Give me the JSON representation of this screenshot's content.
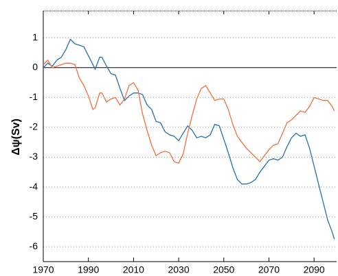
{
  "chart_data": {
    "type": "line",
    "y_label": "Δψ(Sv)",
    "x": [
      1970,
      1972,
      1974,
      1976,
      1978,
      1980,
      1982,
      1984,
      1986,
      1988,
      1990,
      1992,
      1993,
      1995,
      1996,
      1998,
      2000,
      2002,
      2004,
      2006,
      2008,
      2010,
      2012,
      2014,
      2016,
      2018,
      2020,
      2022,
      2024,
      2026,
      2028,
      2030,
      2032,
      2034,
      2036,
      2038,
      2040,
      2042,
      2044,
      2046,
      2048,
      2050,
      2052,
      2054,
      2056,
      2058,
      2060,
      2062,
      2064,
      2066,
      2068,
      2070,
      2072,
      2074,
      2076,
      2078,
      2080,
      2082,
      2084,
      2086,
      2088,
      2090,
      2092,
      2094,
      2096,
      2098,
      2099
    ],
    "series": [
      {
        "color": "#1f6fb4",
        "values": [
          0,
          0.15,
          0.05,
          0.25,
          0.35,
          0.6,
          0.95,
          0.8,
          0.75,
          0.7,
          0.4,
          0.1,
          -0.05,
          0.35,
          0.35,
          0.05,
          -0.2,
          -0.25,
          -0.7,
          -1.1,
          -0.95,
          -0.85,
          -0.85,
          -0.9,
          -1.25,
          -1.4,
          -1.8,
          -1.85,
          -2.15,
          -2.25,
          -2.3,
          -2.45,
          -2.2,
          -1.95,
          -2.1,
          -2.35,
          -2.3,
          -2.35,
          -2.25,
          -1.9,
          -1.95,
          -2.4,
          -2.85,
          -3.35,
          -3.75,
          -3.9,
          -3.9,
          -3.85,
          -3.75,
          -3.5,
          -3.3,
          -3.1,
          -3.05,
          -3.1,
          -3.0,
          -2.65,
          -2.35,
          -2.2,
          -2.3,
          -2.25,
          -2.7,
          -3.3,
          -3.9,
          -4.5,
          -5.1,
          -5.5,
          -5.75
        ]
      },
      {
        "color": "#f0703a",
        "values": [
          0.1,
          0.25,
          0,
          0.05,
          0.1,
          0.15,
          0.15,
          0.1,
          -0.35,
          -0.6,
          -0.95,
          -1.4,
          -1.35,
          -0.85,
          -0.85,
          -1.15,
          -1.05,
          -1.0,
          -1.25,
          -1.05,
          -0.6,
          -0.5,
          -0.75,
          -1.55,
          -2.1,
          -2.6,
          -2.95,
          -2.85,
          -2.8,
          -2.85,
          -3.15,
          -3.2,
          -2.9,
          -2.2,
          -1.6,
          -1.05,
          -0.7,
          -0.6,
          -0.85,
          -1.1,
          -1.05,
          -1.05,
          -1.4,
          -1.9,
          -2.3,
          -2.5,
          -2.7,
          -2.85,
          -3.0,
          -3.15,
          -2.95,
          -2.75,
          -2.6,
          -2.55,
          -2.2,
          -1.85,
          -1.75,
          -1.6,
          -1.45,
          -1.5,
          -1.3,
          -1.0,
          -1.05,
          -1.1,
          -1.1,
          -1.3,
          -1.45
        ]
      }
    ],
    "xlim": [
      1970,
      2100
    ],
    "ylim": [
      -6.5,
      1.9
    ],
    "xticks": [
      1970,
      1990,
      2010,
      2030,
      2050,
      2070,
      2090
    ],
    "yticks": [
      -6,
      -5,
      -4,
      -3,
      -2,
      -1,
      0,
      1
    ],
    "grid": true
  }
}
